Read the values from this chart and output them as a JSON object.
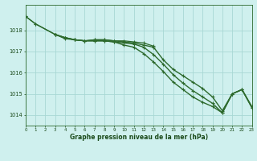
{
  "series": [
    {
      "name": "line_top",
      "x": [
        0,
        1,
        3,
        4,
        5,
        6,
        7,
        8,
        9,
        10,
        11,
        12,
        13
      ],
      "y": [
        1018.65,
        1018.3,
        1017.8,
        1017.6,
        1017.55,
        1017.5,
        1017.55,
        1017.55,
        1017.5,
        1017.5,
        1017.45,
        1017.4,
        1017.25
      ],
      "color": "#2d6a2d",
      "linewidth": 0.9,
      "marker": "+"
    },
    {
      "name": "line_main1",
      "x": [
        0,
        1,
        3,
        4,
        5,
        6,
        7,
        8,
        9,
        10,
        11,
        12,
        13,
        14,
        15,
        16,
        17,
        18,
        19,
        20,
        21,
        22,
        23
      ],
      "y": [
        1018.65,
        1018.3,
        1017.8,
        1017.65,
        1017.55,
        1017.5,
        1017.55,
        1017.55,
        1017.5,
        1017.45,
        1017.4,
        1017.3,
        1017.2,
        1016.6,
        1016.15,
        1015.85,
        1015.55,
        1015.25,
        1014.85,
        1014.2,
        1015.0,
        1015.2,
        1014.4
      ],
      "color": "#2d6a2d",
      "linewidth": 1.0,
      "marker": "+"
    },
    {
      "name": "line_main2",
      "x": [
        3,
        4,
        5,
        6,
        7,
        8,
        9,
        10,
        11,
        12,
        13,
        14,
        15,
        16,
        17,
        18,
        19,
        20,
        21,
        22,
        23
      ],
      "y": [
        1017.8,
        1017.65,
        1017.55,
        1017.5,
        1017.5,
        1017.5,
        1017.45,
        1017.3,
        1017.2,
        1016.9,
        1016.5,
        1016.05,
        1015.55,
        1015.2,
        1014.85,
        1014.6,
        1014.4,
        1014.1,
        1015.0,
        1015.2,
        1014.35
      ],
      "color": "#2d6a2d",
      "linewidth": 1.0,
      "marker": "+"
    },
    {
      "name": "line_main3",
      "x": [
        3,
        4,
        5,
        6,
        7,
        8,
        9,
        10,
        11,
        12,
        13,
        14,
        15,
        16,
        17,
        18,
        19,
        20,
        21,
        22,
        23
      ],
      "y": [
        1017.8,
        1017.65,
        1017.55,
        1017.5,
        1017.5,
        1017.5,
        1017.45,
        1017.4,
        1017.35,
        1017.2,
        1016.85,
        1016.4,
        1015.9,
        1015.5,
        1015.15,
        1014.85,
        1014.55,
        1014.1,
        1015.0,
        1015.2,
        1014.35
      ],
      "color": "#2d6a2d",
      "linewidth": 1.0,
      "marker": "+"
    }
  ],
  "xlim": [
    0,
    23
  ],
  "ylim": [
    1013.5,
    1019.2
  ],
  "yticks": [
    1014,
    1015,
    1016,
    1017,
    1018
  ],
  "ytick_labels": [
    "1014",
    "1015",
    "1016",
    "1017",
    "1018"
  ],
  "xticks": [
    0,
    1,
    2,
    3,
    4,
    5,
    6,
    7,
    8,
    9,
    10,
    11,
    12,
    13,
    14,
    15,
    16,
    17,
    18,
    19,
    20,
    21,
    22,
    23
  ],
  "xtick_labels": [
    "0",
    "1",
    "2",
    "3",
    "4",
    "5",
    "6",
    "7",
    "8",
    "9",
    "10",
    "11",
    "12",
    "13",
    "14",
    "15",
    "16",
    "17",
    "18",
    "19",
    "20",
    "21",
    "22",
    "23"
  ],
  "xlabel": "Graphe pression niveau de la mer (hPa)",
  "background_color": "#cff0ee",
  "grid_color": "#a8d8d4",
  "line_color": "#2d6a2d",
  "text_color": "#1a4a1a",
  "marker_size": 2.5
}
